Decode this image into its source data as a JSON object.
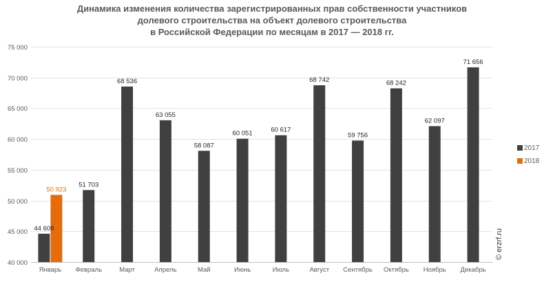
{
  "chart_data": {
    "type": "bar",
    "title": [
      "Динамика изменения количества зарегистрированных прав собственности участников",
      "долевого строительства на объект долевого строительства",
      "в Российской Федерации по месяцам в 2017 — 2018 гг."
    ],
    "categories": [
      "Январь",
      "Февраль",
      "Март",
      "Апрель",
      "Май",
      "Июнь",
      "Июль",
      "Август",
      "Сентябрь",
      "Октябрь",
      "Ноябрь",
      "Декабрь"
    ],
    "series": [
      {
        "name": "2017",
        "color": "#404040",
        "values": [
          44608,
          51703,
          68536,
          63055,
          58087,
          60051,
          60617,
          68742,
          59756,
          68242,
          62097,
          71656
        ],
        "labels": [
          "44 608",
          "51 703",
          "68 536",
          "63 055",
          "58 087",
          "60 051",
          "60 617",
          "68 742",
          "59 756",
          "68 242",
          "62 097",
          "71 656"
        ]
      },
      {
        "name": "2018",
        "color": "#e46c0a",
        "values": [
          50923,
          null,
          null,
          null,
          null,
          null,
          null,
          null,
          null,
          null,
          null,
          null
        ],
        "labels": [
          "50 923",
          "",
          "",
          "",
          "",
          "",
          "",
          "",
          "",
          "",
          "",
          ""
        ]
      }
    ],
    "ylim": [
      40000,
      75000
    ],
    "yticks": [
      40000,
      45000,
      50000,
      55000,
      60000,
      65000,
      70000,
      75000
    ],
    "ytick_labels": [
      "40 000",
      "45 000",
      "50 000",
      "55 000",
      "60 000",
      "65 000",
      "70 000",
      "75 000"
    ],
    "grid": true,
    "legend": "right",
    "watermark": "© erzrf.ru"
  }
}
